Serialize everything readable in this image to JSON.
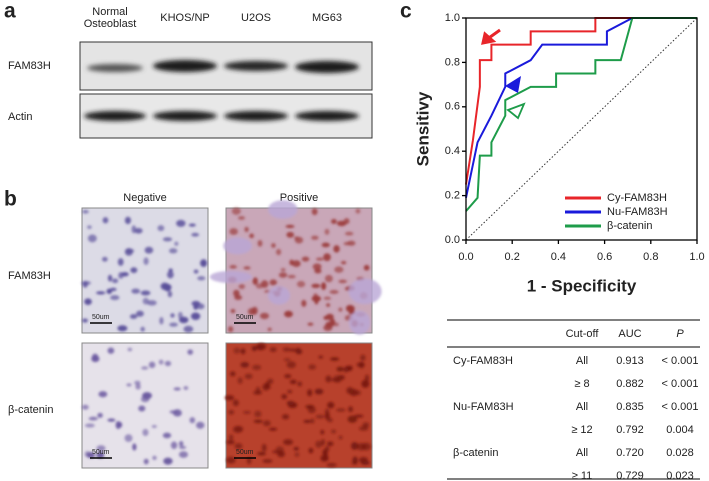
{
  "panel_a": {
    "label": "a",
    "lanes": [
      "Normal\nOsteoblast",
      "KHOS/NP",
      "U2OS",
      "MG63"
    ],
    "rows": [
      "FAM83H",
      "Actin"
    ]
  },
  "panel_b": {
    "label": "b",
    "columns": [
      "Negative",
      "Positive"
    ],
    "rows": [
      "FAM83H",
      "β-catenin"
    ],
    "scale_bar": "50um"
  },
  "panel_c": {
    "label": "c"
  },
  "chart_data": {
    "type": "line",
    "xlabel": "1 - Specificity",
    "ylabel": "Sensitivy",
    "xlim": [
      0,
      1
    ],
    "ylim": [
      0,
      1
    ],
    "xticks": [
      {
        "value": 0,
        "label": "0.0"
      },
      0.2,
      0.4,
      0.6,
      0.8,
      {
        "value": 1,
        "label": "1.0"
      }
    ],
    "yticks": [
      {
        "value": 0,
        "label": "0.0"
      },
      0.2,
      0.4,
      0.6,
      0.8,
      {
        "value": 1,
        "label": "1.0"
      }
    ],
    "legend": "lower right",
    "series": [
      {
        "name": "Cy-FAM83H",
        "color": "#e8252a",
        "x": [
          0,
          0.03,
          0.06,
          0.06,
          0.11,
          0.11,
          0.28,
          0.28,
          0.56,
          0.56,
          1
        ],
        "y": [
          0.25,
          0.45,
          0.69,
          0.81,
          0.81,
          0.88,
          0.88,
          0.94,
          0.94,
          1,
          1
        ]
      },
      {
        "name": "Nu-FAM83H",
        "color": "#1a1adb",
        "x": [
          0,
          0.05,
          0.11,
          0.17,
          0.17,
          0.28,
          0.33,
          0.61,
          0.61,
          0.72,
          1
        ],
        "y": [
          0.19,
          0.44,
          0.56,
          0.69,
          0.75,
          0.81,
          0.88,
          0.88,
          0.94,
          1,
          1
        ]
      },
      {
        "name": "β-catenin",
        "color": "#1e9c4a",
        "x": [
          0,
          0.05,
          0.06,
          0.11,
          0.11,
          0.17,
          0.17,
          0.28,
          0.39,
          0.39,
          0.56,
          0.56,
          0.67,
          0.72,
          1
        ],
        "y": [
          0.13,
          0.19,
          0.38,
          0.38,
          0.44,
          0.56,
          0.63,
          0.69,
          0.69,
          0.75,
          0.75,
          0.81,
          0.81,
          1,
          1
        ]
      }
    ]
  },
  "table": {
    "headers": [
      "Cut-off",
      "AUC",
      "P"
    ],
    "groups": [
      {
        "name": "Cy-FAM83H",
        "rows": [
          [
            "All",
            "0.913",
            "< 0.001"
          ],
          [
            "≥ 8",
            "0.882",
            "< 0.001"
          ]
        ]
      },
      {
        "name": "Nu-FAM83H",
        "rows": [
          [
            "All",
            "0.835",
            "< 0.001"
          ],
          [
            "≥ 12",
            "0.792",
            "0.004"
          ]
        ]
      },
      {
        "name": "β-catenin",
        "rows": [
          [
            "All",
            "0.720",
            "0.028"
          ],
          [
            "≥ 11",
            "0.729",
            "0.023"
          ]
        ]
      }
    ]
  }
}
